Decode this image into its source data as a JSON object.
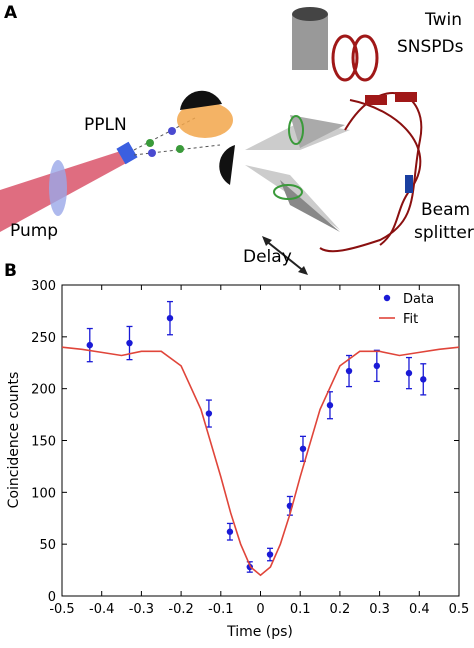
{
  "panel_a": {
    "label": "A",
    "twin_snspds": [
      "Twin",
      "SNSPDs"
    ],
    "ppln": "PPLN",
    "pump": "Pump",
    "delay": "Delay",
    "beam_splitter": [
      "Beam",
      "splitter"
    ]
  },
  "panel_b_label": "B",
  "chart_data": {
    "type": "scatter",
    "x_label": "Time (ps)",
    "y_label": "Coincidence counts",
    "xlim": [
      -0.5,
      0.5
    ],
    "xticks": [
      -0.5,
      -0.4,
      -0.3,
      -0.2,
      -0.1,
      0,
      0.1,
      0.2,
      0.3,
      0.4,
      0.5
    ],
    "ylim": [
      0,
      300
    ],
    "yticks": [
      0,
      50,
      100,
      150,
      200,
      250,
      300
    ],
    "legend": "top-right",
    "series": [
      {
        "name": "Data",
        "style": "markers",
        "color": "#1a1ad6",
        "x": [
          -0.43,
          -0.33,
          -0.228,
          -0.13,
          -0.077,
          -0.027,
          0.024,
          0.074,
          0.107,
          0.175,
          0.223,
          0.293,
          0.374,
          0.41
        ],
        "values": [
          242,
          244,
          268,
          176,
          62,
          28,
          40,
          87,
          142,
          184,
          217,
          222,
          215,
          209
        ],
        "errors": [
          16,
          16,
          16,
          13,
          8,
          5,
          6,
          9,
          12,
          13,
          15,
          15,
          15,
          15
        ]
      },
      {
        "name": "Fit",
        "style": "line",
        "color": "#e0453a",
        "x": [
          -0.5,
          -0.45,
          -0.4,
          -0.35,
          -0.3,
          -0.25,
          -0.2,
          -0.15,
          -0.1,
          -0.075,
          -0.05,
          -0.025,
          0,
          0.025,
          0.05,
          0.075,
          0.1,
          0.15,
          0.2,
          0.25,
          0.3,
          0.35,
          0.4,
          0.45,
          0.5
        ],
        "values": [
          240,
          238,
          235,
          232,
          236,
          236,
          222,
          180,
          115,
          80,
          50,
          28,
          20,
          28,
          50,
          80,
          115,
          180,
          222,
          236,
          236,
          232,
          235,
          238,
          240
        ]
      }
    ]
  }
}
